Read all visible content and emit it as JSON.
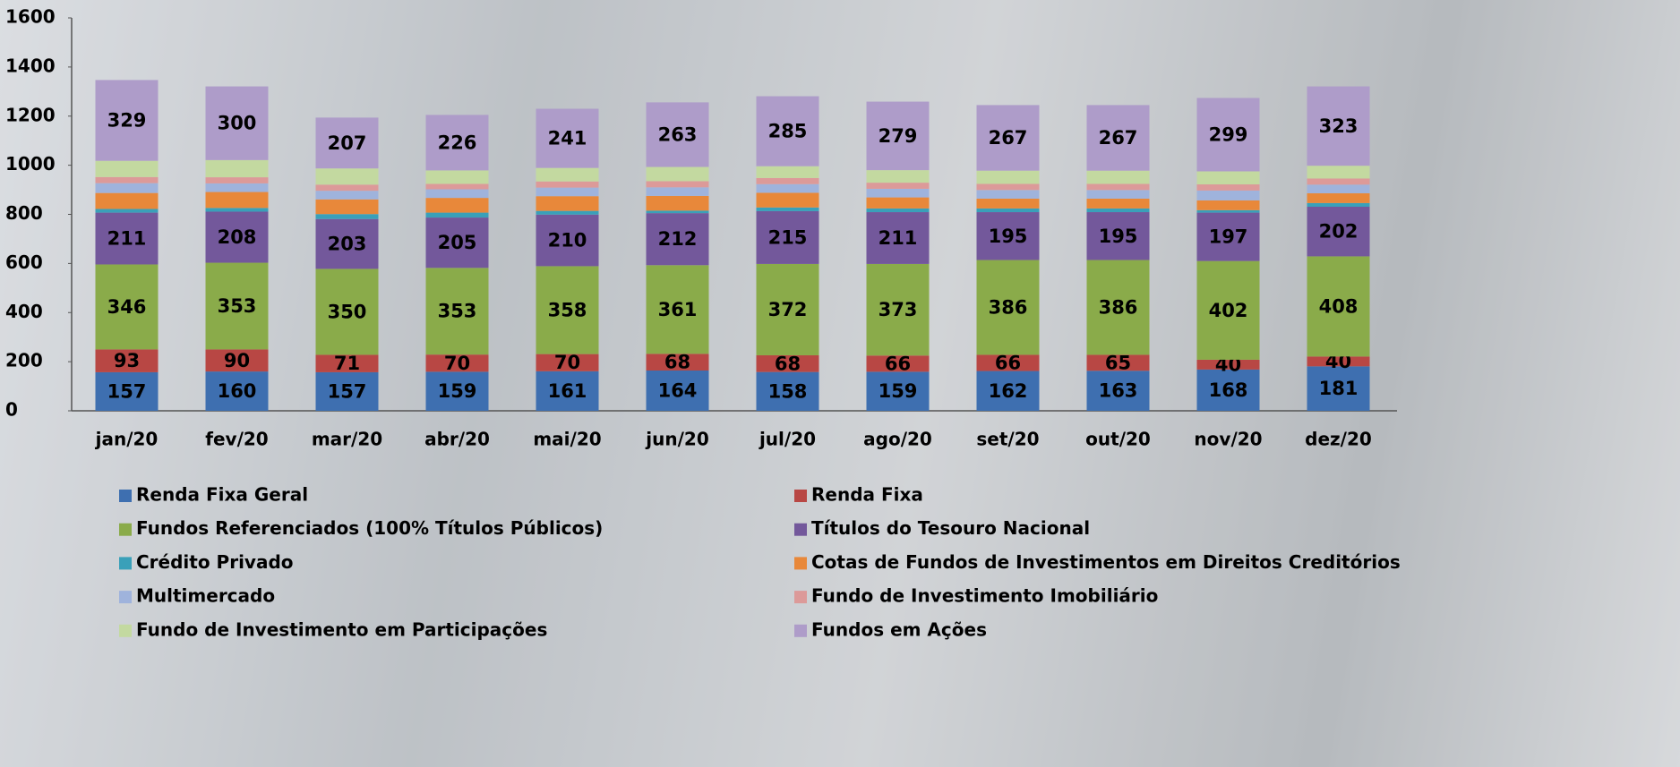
{
  "chart_data": {
    "type": "stacked-bar",
    "categories": [
      "jan/20",
      "fev/20",
      "mar/20",
      "abr/20",
      "mai/20",
      "jun/20",
      "jul/20",
      "ago/20",
      "set/20",
      "out/20",
      "nov/20",
      "dez/20"
    ],
    "ylim": [
      0,
      1600
    ],
    "yticks": [
      0,
      200,
      400,
      600,
      800,
      1000,
      1200,
      1400,
      1600
    ],
    "grid": false,
    "series": [
      {
        "name": "Renda Fixa Geral",
        "color": "#3e6fb0",
        "labels": true,
        "values": [
          157,
          160,
          157,
          159,
          161,
          164,
          158,
          159,
          162,
          163,
          168,
          181
        ]
      },
      {
        "name": "Renda Fixa",
        "color": "#b84744",
        "labels": true,
        "values": [
          93,
          90,
          71,
          70,
          70,
          68,
          68,
          66,
          66,
          65,
          40,
          40
        ]
      },
      {
        "name": "Fundos Referenciados (100% Títulos Públicos)",
        "color": "#8aab4a",
        "labels": true,
        "values": [
          346,
          353,
          350,
          353,
          358,
          361,
          372,
          373,
          386,
          386,
          402,
          408
        ]
      },
      {
        "name": "Títulos do Tesouro Nacional",
        "color": "#73589b",
        "labels": true,
        "values": [
          211,
          208,
          203,
          205,
          210,
          212,
          215,
          211,
          195,
          195,
          197,
          202
        ]
      },
      {
        "name": "Crédito Privado",
        "color": "#3aa0b9",
        "labels": false,
        "values": [
          15,
          15,
          20,
          20,
          15,
          10,
          15,
          15,
          15,
          15,
          10,
          15
        ]
      },
      {
        "name": "Cotas de Fundos de Investimentos em Direitos Creditórios",
        "color": "#e8883a",
        "labels": false,
        "values": [
          65,
          65,
          60,
          60,
          60,
          60,
          60,
          45,
          40,
          40,
          40,
          40
        ]
      },
      {
        "name": "Multimercado",
        "color": "#9fb3dc",
        "labels": false,
        "values": [
          40,
          35,
          35,
          35,
          35,
          35,
          35,
          35,
          35,
          35,
          40,
          35
        ]
      },
      {
        "name": "Fundo de Investimento Imobiliário",
        "color": "#dc9a99",
        "labels": false,
        "values": [
          25,
          25,
          25,
          22,
          25,
          25,
          25,
          25,
          25,
          25,
          25,
          25
        ]
      },
      {
        "name": "Fundo de Investimento  em Participações",
        "color": "#c3d9a0",
        "labels": false,
        "values": [
          66,
          70,
          66,
          55,
          55,
          58,
          48,
          51,
          54,
          54,
          53,
          52
        ]
      },
      {
        "name": "Fundos em Ações",
        "color": "#ae9cc9",
        "labels": true,
        "values": [
          329,
          300,
          207,
          226,
          241,
          263,
          285,
          279,
          267,
          267,
          299,
          323
        ]
      }
    ]
  }
}
